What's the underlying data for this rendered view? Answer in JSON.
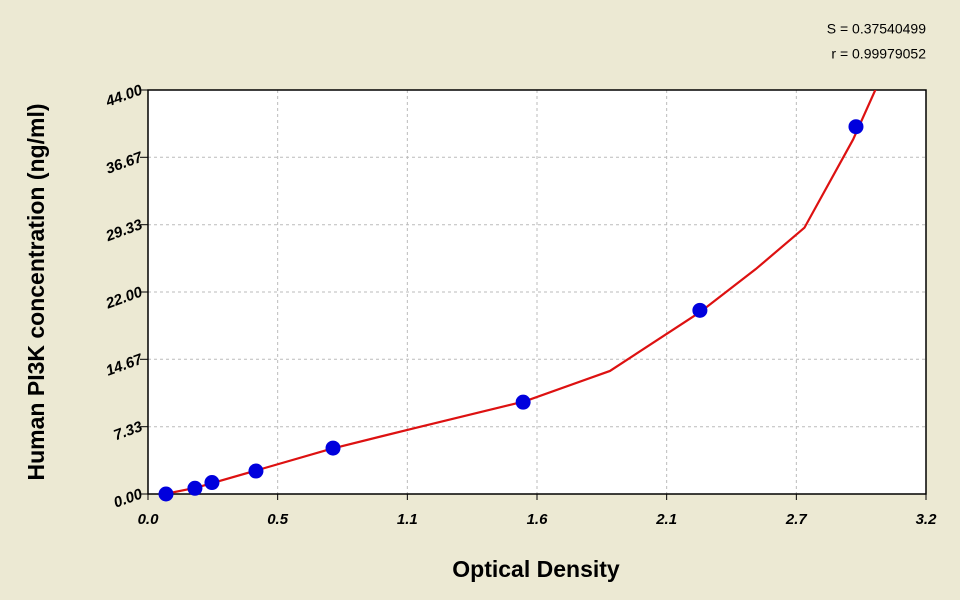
{
  "chart_data": {
    "type": "scatter",
    "x_label": "Optical Density",
    "y_label": "Human PI3K concentration (ng/ml)",
    "annotations": [
      "S = 0.37540499",
      "r = 0.99979052"
    ],
    "x": [
      0.074,
      0.193,
      0.263,
      0.444,
      0.761,
      1.543,
      2.27,
      2.912
    ],
    "values": [
      0,
      0.625,
      1.25,
      2.5,
      5,
      10,
      20,
      40
    ],
    "color": "#0000dd",
    "fit": {
      "color": "#dd1111",
      "x": [
        0.07,
        0.2,
        0.45,
        0.75,
        1.1,
        1.55,
        1.9,
        2.27,
        2.5,
        2.7,
        2.9,
        3.0
      ],
      "values": [
        0,
        0.7,
        2.6,
        4.9,
        7.2,
        10.1,
        13.4,
        19.8,
        24.5,
        29,
        38.6,
        44.5
      ]
    },
    "xlim": [
      0,
      3.2
    ],
    "ylim": [
      0,
      44
    ],
    "xticks": [
      {
        "value": 0,
        "label": "0.0"
      },
      {
        "value": 0.5333,
        "label": "0.5"
      },
      {
        "value": 1.0667,
        "label": "1.1"
      },
      1.6,
      {
        "value": 2.1333,
        "label": "2.1"
      },
      {
        "value": 2.6667,
        "label": "2.7"
      },
      3.2
    ],
    "yticks": [
      {
        "value": 0,
        "label": "0.00"
      },
      7.33,
      14.67,
      {
        "value": 22,
        "label": "22.00"
      },
      29.33,
      36.67,
      {
        "value": 44,
        "label": "44.00"
      }
    ],
    "grid": true
  }
}
